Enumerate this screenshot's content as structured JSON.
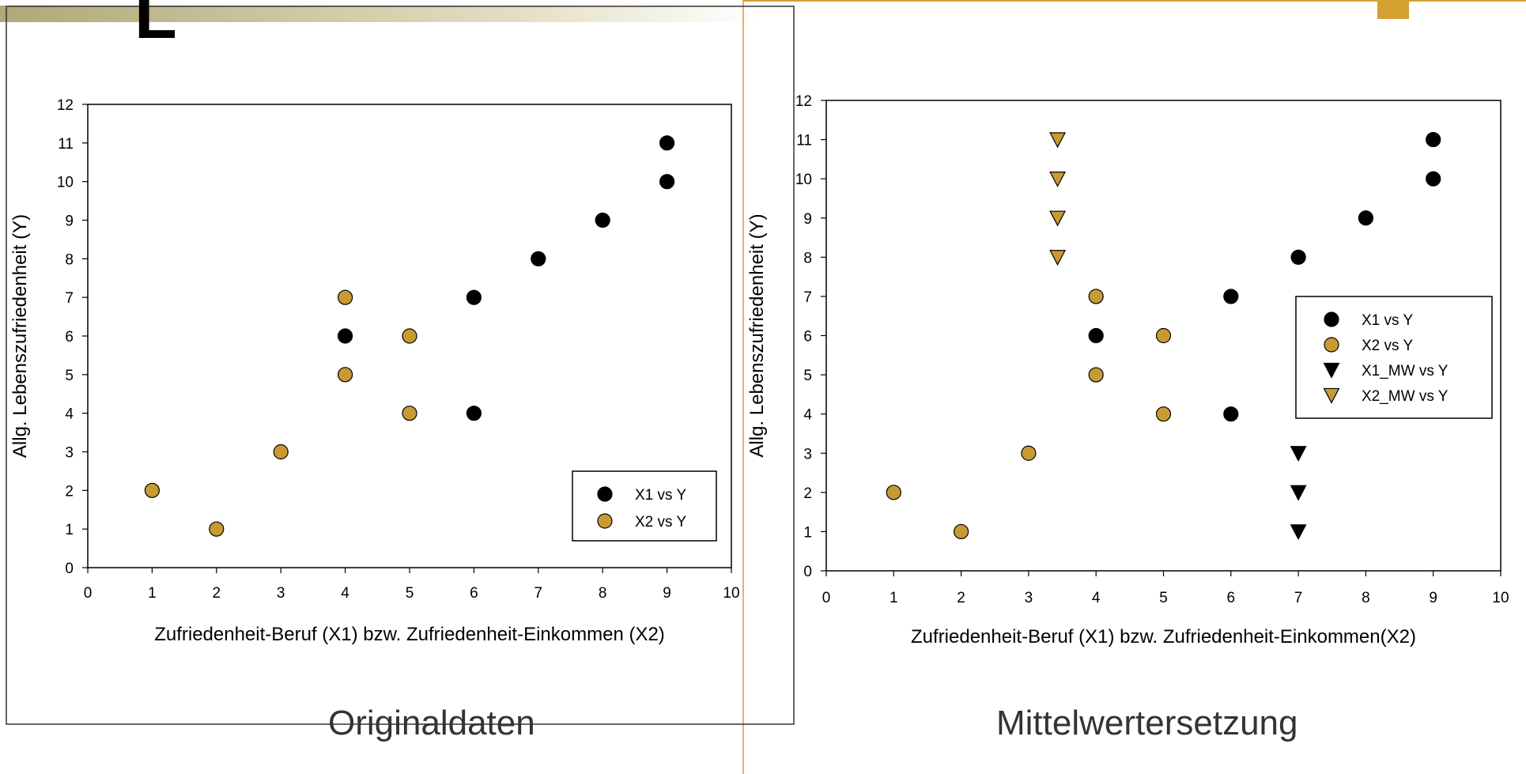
{
  "slide": {
    "header_letter": "L",
    "captions": {
      "left": "Originaldaten",
      "right": "Mittelwertersetzung"
    },
    "colors": {
      "black": "#000000",
      "gold": "#C89A32",
      "accent_line": "#D4A030"
    }
  },
  "chart_data": [
    {
      "type": "scatter",
      "title": "",
      "xlabel": "Zufriedenheit-Beruf (X1) bzw. Zufriedenheit-Einkommen (X2)",
      "ylabel": "Allg. Lebenszufriedenheit (Y)",
      "xlim": [
        0,
        10
      ],
      "ylim": [
        0,
        12
      ],
      "xticks": [
        "0",
        "1",
        "2",
        "3",
        "4",
        "5",
        "6",
        "7",
        "8",
        "9",
        "10"
      ],
      "yticks": [
        "0",
        "1",
        "2",
        "3",
        "4",
        "5",
        "6",
        "7",
        "8",
        "9",
        "10",
        "11",
        "12"
      ],
      "grid": false,
      "legend_position": "bottom-right",
      "series": [
        {
          "name": "X1 vs Y",
          "marker": "circle",
          "color": "#000000",
          "points": [
            [
              4,
              6
            ],
            [
              6,
              7
            ],
            [
              6,
              4
            ],
            [
              7,
              8
            ],
            [
              8,
              9
            ],
            [
              9,
              10
            ],
            [
              9,
              11
            ]
          ]
        },
        {
          "name": "X2 vs Y",
          "marker": "circle",
          "color": "#C89A32",
          "points": [
            [
              1,
              2
            ],
            [
              2,
              1
            ],
            [
              3,
              3
            ],
            [
              4,
              5
            ],
            [
              4,
              7
            ],
            [
              5,
              4
            ],
            [
              5,
              6
            ]
          ]
        }
      ]
    },
    {
      "type": "scatter",
      "title": "",
      "xlabel": "Zufriedenheit-Beruf (X1) bzw. Zufriedenheit-Einkommen(X2)",
      "ylabel": "Allg. Lebenszufriedenheit (Y)",
      "xlim": [
        0,
        10
      ],
      "ylim": [
        0,
        12
      ],
      "xticks": [
        "0",
        "1",
        "2",
        "3",
        "4",
        "5",
        "6",
        "7",
        "8",
        "9",
        "10"
      ],
      "yticks": [
        "0",
        "1",
        "2",
        "3",
        "4",
        "5",
        "6",
        "7",
        "8",
        "9",
        "10",
        "11",
        "12"
      ],
      "grid": false,
      "legend_position": "top-right",
      "series": [
        {
          "name": "X1 vs Y",
          "marker": "circle",
          "color": "#000000",
          "points": [
            [
              4,
              6
            ],
            [
              6,
              7
            ],
            [
              6,
              4
            ],
            [
              7,
              8
            ],
            [
              8,
              9
            ],
            [
              9,
              10
            ],
            [
              9,
              11
            ]
          ]
        },
        {
          "name": "X2 vs Y",
          "marker": "circle",
          "color": "#C89A32",
          "points": [
            [
              1,
              2
            ],
            [
              2,
              1
            ],
            [
              3,
              3
            ],
            [
              4,
              5
            ],
            [
              4,
              7
            ],
            [
              5,
              4
            ],
            [
              5,
              6
            ]
          ]
        },
        {
          "name": "X1_MW vs Y",
          "marker": "triangle-down",
          "color": "#000000",
          "points": [
            [
              7,
              1
            ],
            [
              7,
              2
            ],
            [
              7,
              3
            ]
          ]
        },
        {
          "name": "X2_MW vs Y",
          "marker": "triangle-down",
          "color": "#C89A32",
          "points": [
            [
              3.43,
              8
            ],
            [
              3.43,
              9
            ],
            [
              3.43,
              10
            ],
            [
              3.43,
              11
            ]
          ]
        }
      ]
    }
  ]
}
